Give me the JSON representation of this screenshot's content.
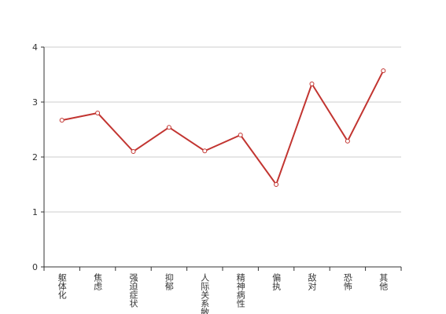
{
  "chart_data": {
    "type": "line",
    "categories": [
      "躯体化",
      "焦虑",
      "强迫症状",
      "抑郁",
      "人际关系敏感",
      "精神病性",
      "偏执",
      "敌对",
      "恐怖",
      "其他"
    ],
    "series": [
      {
        "color": "#c23531",
        "values": [
          2.67,
          2.8,
          2.1,
          2.54,
          2.11,
          2.4,
          1.5,
          3.33,
          2.29,
          3.57
        ]
      }
    ],
    "ylim": [
      0,
      4
    ],
    "yticks": [
      0,
      1,
      2,
      3,
      4
    ],
    "grid": true
  }
}
